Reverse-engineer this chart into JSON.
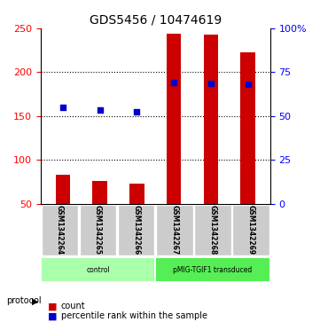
{
  "title": "GDS5456 / 10474619",
  "samples": [
    "GSM1342264",
    "GSM1342265",
    "GSM1342266",
    "GSM1342267",
    "GSM1342268",
    "GSM1342269"
  ],
  "counts": [
    83,
    76,
    73,
    243,
    242,
    222
  ],
  "percentile_left": [
    50,
    50,
    50,
    50,
    50,
    50
  ],
  "percentile_values": [
    160,
    157,
    155,
    188,
    187,
    186
  ],
  "ylim_left": [
    50,
    250
  ],
  "ylim_right": [
    0,
    100
  ],
  "yticks_left": [
    50,
    100,
    150,
    200,
    250
  ],
  "yticks_right": [
    0,
    25,
    50,
    75,
    100
  ],
  "ytick_labels_right": [
    "0",
    "25",
    "50",
    "75",
    "100%"
  ],
  "bar_color": "#cc0000",
  "dot_color": "#0000cc",
  "groups": [
    {
      "label": "control",
      "samples": [
        "GSM1342264",
        "GSM1342265",
        "GSM1342266"
      ],
      "color": "#aaffaa"
    },
    {
      "label": "pMIG-TGIF1 transduced",
      "samples": [
        "GSM1342267",
        "GSM1342268",
        "GSM1342269"
      ],
      "color": "#55ee55"
    }
  ],
  "protocol_label": "protocol",
  "legend_count_label": "count",
  "legend_pct_label": "percentile rank within the sample",
  "x_label_area_color": "#cccccc",
  "dotted_line_color": "#000000",
  "bar_width": 0.4
}
